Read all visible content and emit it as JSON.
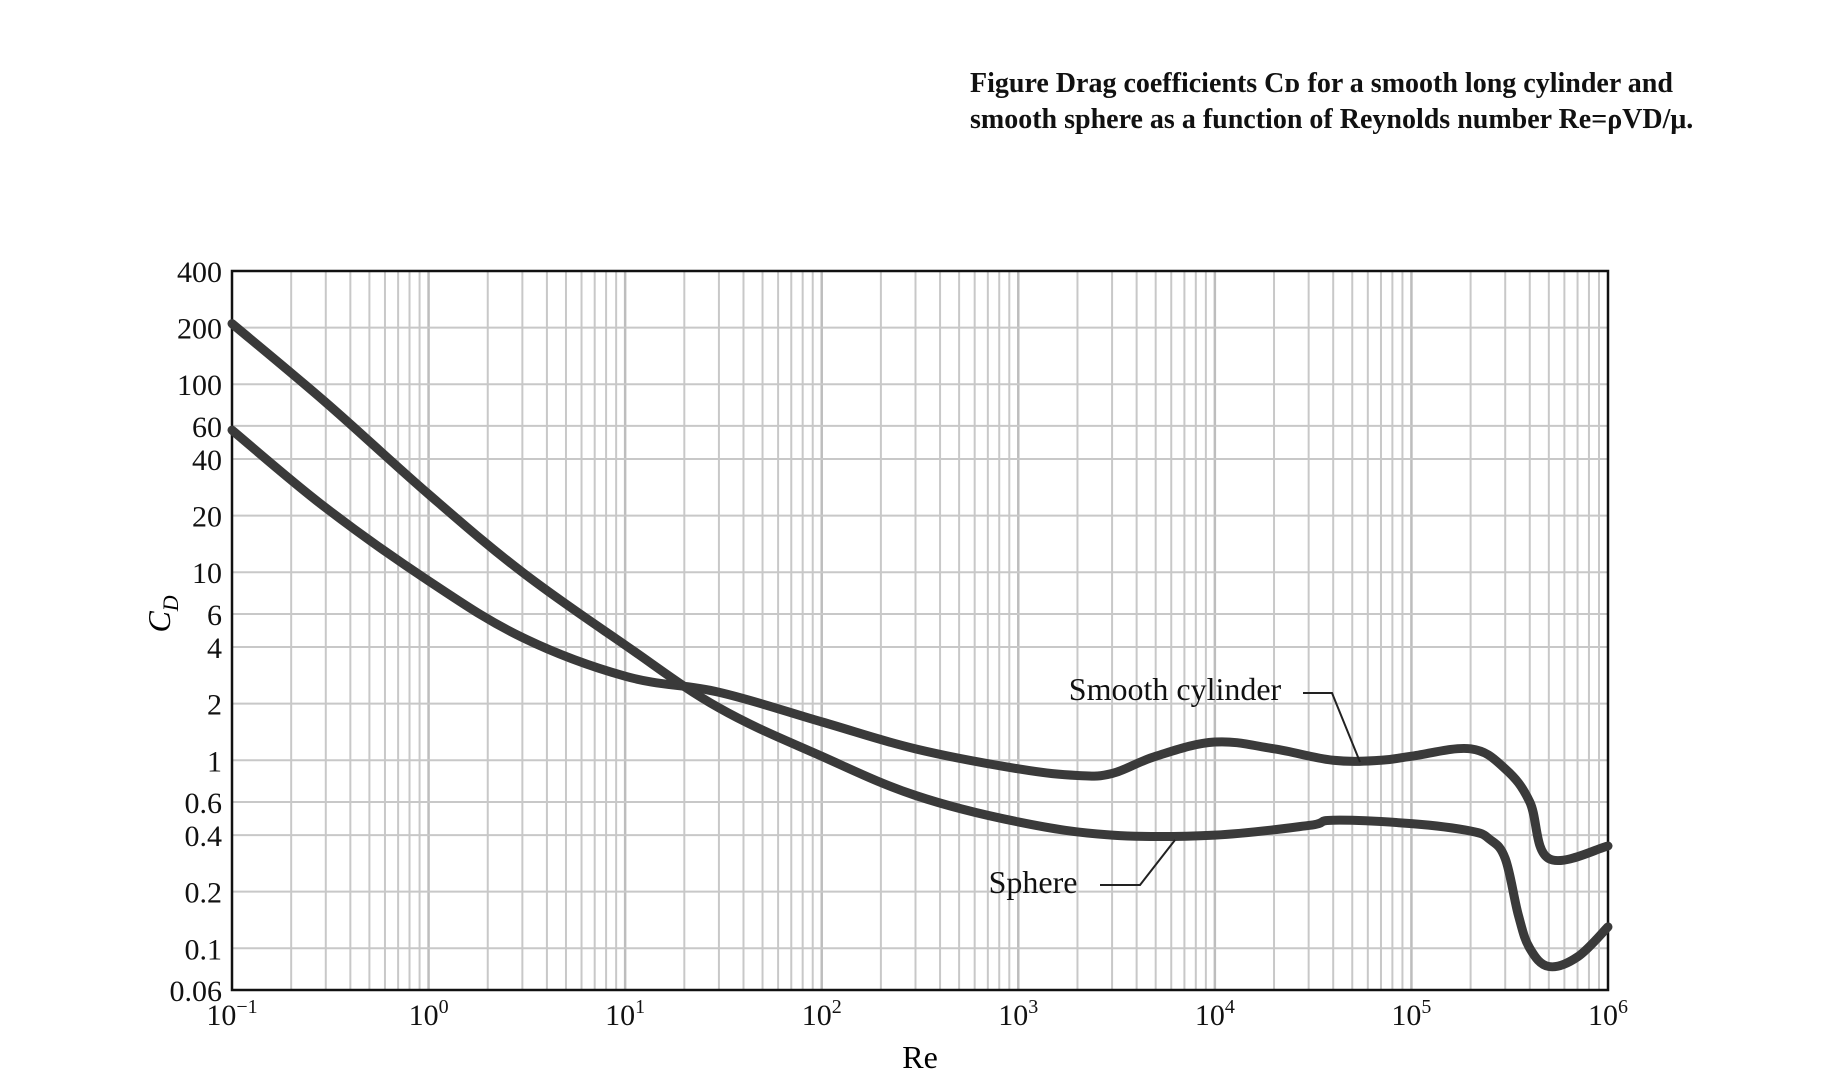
{
  "figure": {
    "caption_line1": "Figure Drag coefficients Cᴅ for a smooth long cylinder and",
    "caption_line2": "smooth sphere as a function of Reynolds number Re=ρVD/μ."
  },
  "chart_data": {
    "type": "line",
    "xlabel": "Re",
    "ylabel_main": "C",
    "ylabel_sub": "D",
    "x_scale": "log",
    "y_scale": "log",
    "xlim": [
      0.1,
      1000000
    ],
    "ylim": [
      0.06,
      400
    ],
    "grid": true,
    "x_ticks": [
      {
        "value": 0.1,
        "base": "10",
        "exp": "−1"
      },
      {
        "value": 1,
        "base": "10",
        "exp": "0"
      },
      {
        "value": 10,
        "base": "10",
        "exp": "1"
      },
      {
        "value": 100,
        "base": "10",
        "exp": "2"
      },
      {
        "value": 1000,
        "base": "10",
        "exp": "3"
      },
      {
        "value": 10000,
        "base": "10",
        "exp": "4"
      },
      {
        "value": 100000,
        "base": "10",
        "exp": "5"
      },
      {
        "value": 1000000,
        "base": "10",
        "exp": "6"
      }
    ],
    "y_ticks": [
      {
        "value": 400,
        "label": "400"
      },
      {
        "value": 200,
        "label": "200"
      },
      {
        "value": 100,
        "label": "100"
      },
      {
        "value": 60,
        "label": "60"
      },
      {
        "value": 40,
        "label": "40"
      },
      {
        "value": 20,
        "label": "20"
      },
      {
        "value": 10,
        "label": "10"
      },
      {
        "value": 6,
        "label": "6"
      },
      {
        "value": 4,
        "label": "4"
      },
      {
        "value": 2,
        "label": "2"
      },
      {
        "value": 1,
        "label": "1"
      },
      {
        "value": 0.6,
        "label": "0.6"
      },
      {
        "value": 0.4,
        "label": "0.4"
      },
      {
        "value": 0.2,
        "label": "0.2"
      },
      {
        "value": 0.1,
        "label": "0.1"
      },
      {
        "value": 0.06,
        "label": "0.06"
      }
    ],
    "series": [
      {
        "name": "Smooth cylinder",
        "color": "#3a3a3a",
        "x": [
          0.1,
          0.3,
          1,
          3,
          10,
          30,
          100,
          300,
          1000,
          2000,
          3000,
          5000,
          10000,
          20000,
          40000,
          70000,
          100000,
          200000,
          300000,
          400000,
          500000,
          1000000
        ],
        "y": [
          57,
          22,
          9,
          4.5,
          2.8,
          2.3,
          1.6,
          1.15,
          0.9,
          0.83,
          0.85,
          1.05,
          1.25,
          1.15,
          1.0,
          1.0,
          1.05,
          1.15,
          0.9,
          0.6,
          0.3,
          0.35
        ]
      },
      {
        "name": "Sphere",
        "color": "#3a3a3a",
        "x": [
          0.1,
          0.3,
          1,
          3,
          10,
          30,
          100,
          300,
          1000,
          3000,
          10000,
          30000,
          40000,
          100000,
          200000,
          250000,
          300000,
          350000,
          400000,
          500000,
          700000,
          1000000
        ],
        "y": [
          210,
          80,
          26,
          10,
          4.1,
          1.9,
          1.05,
          0.65,
          0.47,
          0.4,
          0.4,
          0.45,
          0.48,
          0.46,
          0.42,
          0.38,
          0.3,
          0.15,
          0.1,
          0.08,
          0.09,
          0.13
        ]
      }
    ],
    "annotations": [
      {
        "text": "Smooth cylinder",
        "series": "Smooth cylinder"
      },
      {
        "text": "Sphere",
        "series": "Sphere"
      }
    ]
  }
}
